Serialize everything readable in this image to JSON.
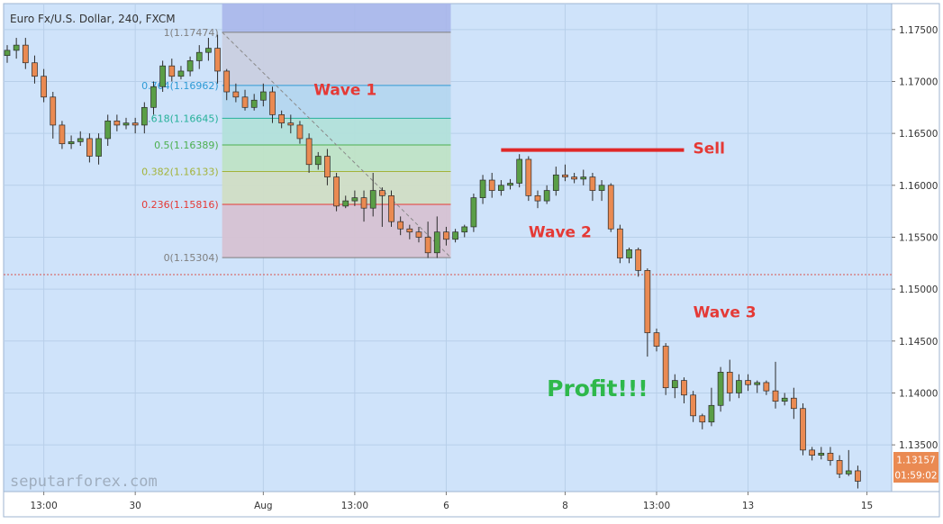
{
  "chart_data": {
    "type": "candlestick",
    "title": "Euro Fx/U.S. Dollar, 240, FXCM",
    "watermark": "seputarforex.com",
    "ylim": [
      1.1305,
      1.1775
    ],
    "y_ticks": [
      "1.17500",
      "1.17000",
      "1.16500",
      "1.16000",
      "1.15500",
      "1.15000",
      "1.14500",
      "1.14000",
      "1.13500"
    ],
    "x_ticks": [
      {
        "label": "13:00",
        "bar": 4
      },
      {
        "label": "30",
        "bar": 14
      },
      {
        "label": "Aug",
        "bar": 28
      },
      {
        "label": "13:00",
        "bar": 38
      },
      {
        "label": "6",
        "bar": 48
      },
      {
        "label": "8",
        "bar": 61
      },
      {
        "label": "13:00",
        "bar": 71
      },
      {
        "label": "13",
        "bar": 81
      },
      {
        "label": "15",
        "bar": 94
      }
    ],
    "last_price": {
      "label": "1.13157",
      "value": 1.13157,
      "countdown": "01:59:02"
    },
    "dotted_level": 1.1514,
    "candles": [
      [
        1.1725,
        1.173,
        1.1718,
        1.1735
      ],
      [
        1.173,
        1.1735,
        1.1722,
        1.1742
      ],
      [
        1.1735,
        1.1718,
        1.1712,
        1.1742
      ],
      [
        1.1718,
        1.1705,
        1.1698,
        1.1725
      ],
      [
        1.1705,
        1.1685,
        1.168,
        1.1712
      ],
      [
        1.1685,
        1.1658,
        1.1645,
        1.169
      ],
      [
        1.1658,
        1.164,
        1.1635,
        1.1662
      ],
      [
        1.164,
        1.1642,
        1.1635,
        1.1648
      ],
      [
        1.1642,
        1.1645,
        1.1638,
        1.1652
      ],
      [
        1.1645,
        1.1628,
        1.1622,
        1.165
      ],
      [
        1.1628,
        1.1645,
        1.162,
        1.165
      ],
      [
        1.1645,
        1.1662,
        1.1638,
        1.1668
      ],
      [
        1.1662,
        1.1658,
        1.1652,
        1.1668
      ],
      [
        1.1658,
        1.166,
        1.1654,
        1.1665
      ],
      [
        1.166,
        1.1658,
        1.165,
        1.1665
      ],
      [
        1.1658,
        1.1675,
        1.165,
        1.168
      ],
      [
        1.1675,
        1.1695,
        1.1668,
        1.17
      ],
      [
        1.1695,
        1.1715,
        1.169,
        1.172
      ],
      [
        1.1715,
        1.1705,
        1.17,
        1.1722
      ],
      [
        1.1705,
        1.171,
        1.1702,
        1.1715
      ],
      [
        1.171,
        1.172,
        1.1705,
        1.1724
      ],
      [
        1.172,
        1.1728,
        1.1712,
        1.1735
      ],
      [
        1.1728,
        1.1732,
        1.172,
        1.1742
      ],
      [
        1.1732,
        1.171,
        1.1698,
        1.1745
      ],
      [
        1.171,
        1.169,
        1.1682,
        1.1712
      ],
      [
        1.169,
        1.1685,
        1.168,
        1.1698
      ],
      [
        1.1685,
        1.1675,
        1.1672,
        1.1692
      ],
      [
        1.1675,
        1.1682,
        1.1672,
        1.1688
      ],
      [
        1.1682,
        1.169,
        1.1676,
        1.1698
      ],
      [
        1.169,
        1.1668,
        1.166,
        1.1695
      ],
      [
        1.1668,
        1.166,
        1.1655,
        1.1672
      ],
      [
        1.166,
        1.1658,
        1.165,
        1.1668
      ],
      [
        1.1658,
        1.1645,
        1.164,
        1.1662
      ],
      [
        1.1645,
        1.162,
        1.1612,
        1.165
      ],
      [
        1.162,
        1.1628,
        1.1615,
        1.1632
      ],
      [
        1.1628,
        1.1608,
        1.16,
        1.1635
      ],
      [
        1.1608,
        1.158,
        1.1575,
        1.1612
      ],
      [
        1.158,
        1.1585,
        1.1578,
        1.159
      ],
      [
        1.1585,
        1.1588,
        1.158,
        1.1595
      ],
      [
        1.1588,
        1.1578,
        1.1565,
        1.1595
      ],
      [
        1.1578,
        1.1595,
        1.157,
        1.1612
      ],
      [
        1.1595,
        1.159,
        1.156,
        1.1598
      ],
      [
        1.159,
        1.1565,
        1.156,
        1.1595
      ],
      [
        1.1565,
        1.1558,
        1.1552,
        1.157
      ],
      [
        1.1558,
        1.1555,
        1.1548,
        1.1562
      ],
      [
        1.1555,
        1.155,
        1.1545,
        1.156
      ],
      [
        1.155,
        1.1535,
        1.153,
        1.1565
      ],
      [
        1.1535,
        1.1555,
        1.153,
        1.157
      ],
      [
        1.1555,
        1.1548,
        1.1542,
        1.156
      ],
      [
        1.1548,
        1.1555,
        1.1545,
        1.1558
      ],
      [
        1.1555,
        1.156,
        1.155,
        1.1562
      ],
      [
        1.156,
        1.1588,
        1.1555,
        1.1592
      ],
      [
        1.1588,
        1.1605,
        1.1582,
        1.161
      ],
      [
        1.1605,
        1.1595,
        1.1588,
        1.1612
      ],
      [
        1.1595,
        1.16,
        1.159,
        1.1605
      ],
      [
        1.16,
        1.1602,
        1.1596,
        1.1606
      ],
      [
        1.1602,
        1.1625,
        1.1598,
        1.163
      ],
      [
        1.1625,
        1.159,
        1.1585,
        1.1628
      ],
      [
        1.159,
        1.1585,
        1.1578,
        1.1595
      ],
      [
        1.1585,
        1.1595,
        1.1582,
        1.16
      ],
      [
        1.1595,
        1.161,
        1.159,
        1.1618
      ],
      [
        1.161,
        1.1608,
        1.1604,
        1.162
      ],
      [
        1.1608,
        1.1606,
        1.1602,
        1.1612
      ],
      [
        1.1606,
        1.1608,
        1.16,
        1.1615
      ],
      [
        1.1608,
        1.1595,
        1.1585,
        1.1612
      ],
      [
        1.1595,
        1.16,
        1.1585,
        1.1605
      ],
      [
        1.16,
        1.1558,
        1.1555,
        1.1602
      ],
      [
        1.1558,
        1.153,
        1.1525,
        1.1562
      ],
      [
        1.153,
        1.1538,
        1.1525,
        1.154
      ],
      [
        1.1538,
        1.1518,
        1.1512,
        1.154
      ],
      [
        1.1518,
        1.1458,
        1.1435,
        1.152
      ],
      [
        1.1458,
        1.1445,
        1.144,
        1.1462
      ],
      [
        1.1445,
        1.1405,
        1.1398,
        1.1448
      ],
      [
        1.1405,
        1.1412,
        1.1395,
        1.1418
      ],
      [
        1.1412,
        1.1398,
        1.139,
        1.1415
      ],
      [
        1.1398,
        1.1378,
        1.1372,
        1.1402
      ],
      [
        1.1378,
        1.1372,
        1.1365,
        1.138
      ],
      [
        1.1372,
        1.1388,
        1.1368,
        1.1405
      ],
      [
        1.1388,
        1.142,
        1.1382,
        1.1425
      ],
      [
        1.142,
        1.14,
        1.1392,
        1.1432
      ],
      [
        1.14,
        1.1412,
        1.1395,
        1.1418
      ],
      [
        1.1412,
        1.1408,
        1.1402,
        1.1418
      ],
      [
        1.1408,
        1.141,
        1.14,
        1.1412
      ],
      [
        1.141,
        1.1402,
        1.1398,
        1.1412
      ],
      [
        1.1402,
        1.1392,
        1.1385,
        1.143
      ],
      [
        1.1392,
        1.1395,
        1.1388,
        1.14
      ],
      [
        1.1395,
        1.1385,
        1.1375,
        1.1405
      ],
      [
        1.1385,
        1.1345,
        1.134,
        1.139
      ],
      [
        1.1345,
        1.134,
        1.1335,
        1.1348
      ],
      [
        1.134,
        1.1342,
        1.1336,
        1.1348
      ],
      [
        1.1342,
        1.1335,
        1.133,
        1.1348
      ],
      [
        1.1335,
        1.1322,
        1.1318,
        1.134
      ],
      [
        1.1322,
        1.1325,
        1.132,
        1.1345
      ],
      [
        1.1325,
        1.1315,
        1.1308,
        1.133
      ]
    ],
    "fibonacci": {
      "levels": [
        {
          "label": "1(1.17474)",
          "value": 1.17474,
          "color": "#7f7f7f",
          "fill": "#c9cfe0"
        },
        {
          "label": "0.764(1.16962)",
          "value": 1.16962,
          "color": "#2f9bd6",
          "fill": "#b4d6ef"
        },
        {
          "label": "0.618(1.16645)",
          "value": 1.16645,
          "color": "#26b19a",
          "fill": "#b2e0da"
        },
        {
          "label": "0.5(1.16389)",
          "value": 1.16389,
          "color": "#4caf50",
          "fill": "#bfe3c6"
        },
        {
          "label": "0.382(1.16133)",
          "value": 1.16133,
          "color": "#a3b33a",
          "fill": "#d0ddc5"
        },
        {
          "label": "0.236(1.15816)",
          "value": 1.15816,
          "color": "#e53935",
          "fill": "#d6c2d3"
        },
        {
          "label": "0(1.15304)",
          "value": 1.15304,
          "color": "#7f7f7f",
          "fill": ""
        }
      ],
      "start_bar": 23.5,
      "end_bar": 48.5,
      "top_fill": "#a9b6ea"
    },
    "annotations": [
      {
        "text": "Wave 1",
        "value": 1.1692,
        "bar": 33.5,
        "color": "#e53935"
      },
      {
        "text": "Wave 2",
        "value": 1.1555,
        "bar": 57,
        "color": "#e53935"
      },
      {
        "text": "Wave 3",
        "value": 1.1478,
        "bar": 75,
        "color": "#e53935"
      },
      {
        "text": "Profit!!!",
        "value": 1.1402,
        "bar": 59,
        "color": "#2eb84b"
      },
      {
        "text": "Sell",
        "value": 1.1636,
        "bar": 74,
        "color": "#e53935"
      }
    ],
    "sell_line": {
      "value": 1.1634,
      "start_bar": 54,
      "end_bar": 74
    },
    "colors": {
      "bull": "#5a9e46",
      "bear": "#ea8a52",
      "wick": "#2b2b2b",
      "background": "#cfe3fa",
      "grid": "#b8cfe9",
      "axis_text": "#333333",
      "last_price_bg": "#ea8a52"
    }
  }
}
